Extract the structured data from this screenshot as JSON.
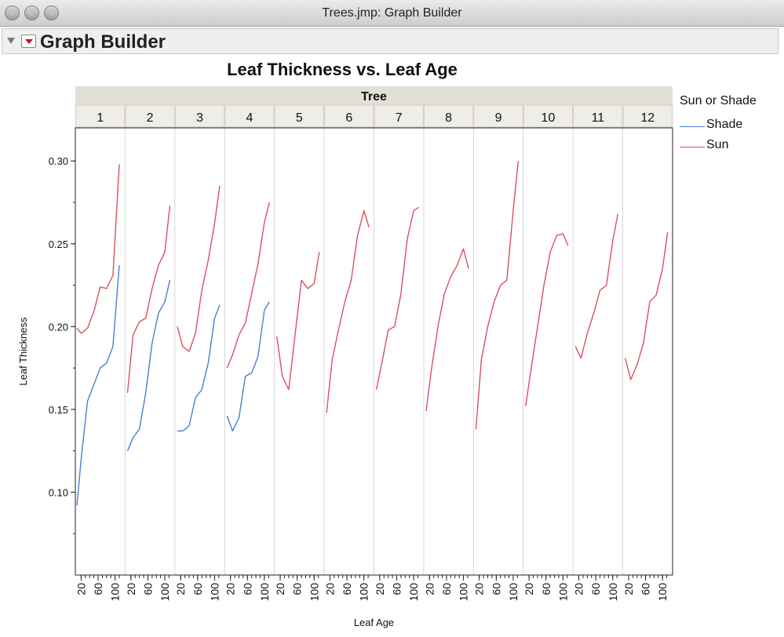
{
  "window": {
    "title": "Trees.jmp: Graph Builder"
  },
  "outline": {
    "title": "Graph Builder"
  },
  "legend": {
    "title": "Sun or Shade",
    "items": [
      {
        "label": "Shade",
        "color": "#4b7fd1"
      },
      {
        "label": "Sun",
        "color": "#d9525f"
      }
    ]
  },
  "chart_data": {
    "type": "line",
    "title": "Leaf Thickness vs. Leaf Age",
    "group_title": "Tree",
    "xlabel": "Leaf Age",
    "ylabel": "Leaf Thickness",
    "ylim": [
      0.05,
      0.32
    ],
    "yticks": [
      "0.10",
      "0.15",
      "0.20",
      "0.25",
      "0.30"
    ],
    "xlim": [
      10,
      120
    ],
    "xticks": [
      {
        "label": "20",
        "value": 20
      },
      {
        "label": "60",
        "value": 60
      },
      {
        "label": "100",
        "value": 100
      }
    ],
    "grid": false,
    "legend_position": "right",
    "panels": [
      {
        "label": "1",
        "series": [
          {
            "name": "Shade",
            "x": [
              10,
              20,
              35,
              50,
              65,
              80,
              95,
              110
            ],
            "y": [
              0.092,
              0.12,
              0.155,
              0.165,
              0.175,
              0.178,
              0.188,
              0.237
            ]
          },
          {
            "name": "Sun",
            "x": [
              10,
              20,
              35,
              50,
              65,
              80,
              95,
              110
            ],
            "y": [
              0.199,
              0.196,
              0.199,
              0.209,
              0.224,
              0.223,
              0.231,
              0.298
            ]
          }
        ]
      },
      {
        "label": "2",
        "series": [
          {
            "name": "Shade",
            "x": [
              12,
              25,
              40,
              55,
              70,
              85,
              100,
              112
            ],
            "y": [
              0.125,
              0.133,
              0.138,
              0.16,
              0.19,
              0.208,
              0.215,
              0.228
            ]
          },
          {
            "name": "Sun",
            "x": [
              12,
              25,
              40,
              55,
              70,
              85,
              100,
              112
            ],
            "y": [
              0.16,
              0.195,
              0.203,
              0.205,
              0.223,
              0.237,
              0.245,
              0.273
            ]
          }
        ]
      },
      {
        "label": "3",
        "series": [
          {
            "name": "Shade",
            "x": [
              12,
              25,
              40,
              55,
              70,
              85,
              100,
              112
            ],
            "y": [
              0.137,
              0.137,
              0.14,
              0.157,
              0.162,
              0.178,
              0.205,
              0.213
            ]
          },
          {
            "name": "Sun",
            "x": [
              12,
              25,
              40,
              55,
              70,
              85,
              100,
              112
            ],
            "y": [
              0.2,
              0.188,
              0.185,
              0.196,
              0.222,
              0.24,
              0.262,
              0.285
            ]
          }
        ]
      },
      {
        "label": "4",
        "series": [
          {
            "name": "Shade",
            "x": [
              12,
              25,
              40,
              55,
              70,
              85,
              100,
              112
            ],
            "y": [
              0.146,
              0.137,
              0.145,
              0.17,
              0.172,
              0.182,
              0.21,
              0.215
            ]
          },
          {
            "name": "Sun",
            "x": [
              12,
              25,
              40,
              55,
              70,
              85,
              100,
              112
            ],
            "y": [
              0.175,
              0.183,
              0.195,
              0.202,
              0.22,
              0.238,
              0.263,
              0.275
            ]
          }
        ]
      },
      {
        "label": "5",
        "series": [
          {
            "name": "Sun",
            "x": [
              12,
              25,
              40,
              55,
              70,
              85,
              100,
              112
            ],
            "y": [
              0.194,
              0.17,
              0.162,
              0.195,
              0.228,
              0.223,
              0.226,
              0.245
            ]
          }
        ]
      },
      {
        "label": "6",
        "series": [
          {
            "name": "Sun",
            "x": [
              12,
              25,
              40,
              55,
              70,
              85,
              100,
              112
            ],
            "y": [
              0.148,
              0.18,
              0.198,
              0.215,
              0.228,
              0.255,
              0.27,
              0.26
            ]
          }
        ]
      },
      {
        "label": "7",
        "series": [
          {
            "name": "Sun",
            "x": [
              12,
              25,
              40,
              55,
              70,
              85,
              100,
              112
            ],
            "y": [
              0.162,
              0.178,
              0.198,
              0.2,
              0.22,
              0.253,
              0.27,
              0.272
            ]
          }
        ]
      },
      {
        "label": "8",
        "series": [
          {
            "name": "Sun",
            "x": [
              12,
              25,
              40,
              55,
              70,
              85,
              100,
              112
            ],
            "y": [
              0.149,
              0.175,
              0.2,
              0.22,
              0.23,
              0.237,
              0.247,
              0.235
            ]
          }
        ]
      },
      {
        "label": "9",
        "series": [
          {
            "name": "Sun",
            "x": [
              12,
              25,
              40,
              55,
              70,
              85,
              100,
              112
            ],
            "y": [
              0.138,
              0.18,
              0.2,
              0.215,
              0.225,
              0.228,
              0.27,
              0.3
            ]
          }
        ]
      },
      {
        "label": "10",
        "series": [
          {
            "name": "Sun",
            "x": [
              12,
              25,
              40,
              55,
              70,
              85,
              100,
              112
            ],
            "y": [
              0.152,
              0.175,
              0.2,
              0.225,
              0.245,
              0.255,
              0.256,
              0.249
            ]
          }
        ]
      },
      {
        "label": "11",
        "series": [
          {
            "name": "Sun",
            "x": [
              12,
              25,
              40,
              55,
              70,
              85,
              100,
              112
            ],
            "y": [
              0.188,
              0.181,
              0.196,
              0.208,
              0.222,
              0.225,
              0.252,
              0.268
            ]
          }
        ]
      },
      {
        "label": "12",
        "series": [
          {
            "name": "Sun",
            "x": [
              12,
              25,
              40,
              55,
              70,
              85,
              100,
              112
            ],
            "y": [
              0.181,
              0.168,
              0.177,
              0.19,
              0.215,
              0.219,
              0.235,
              0.257
            ]
          }
        ]
      }
    ]
  }
}
